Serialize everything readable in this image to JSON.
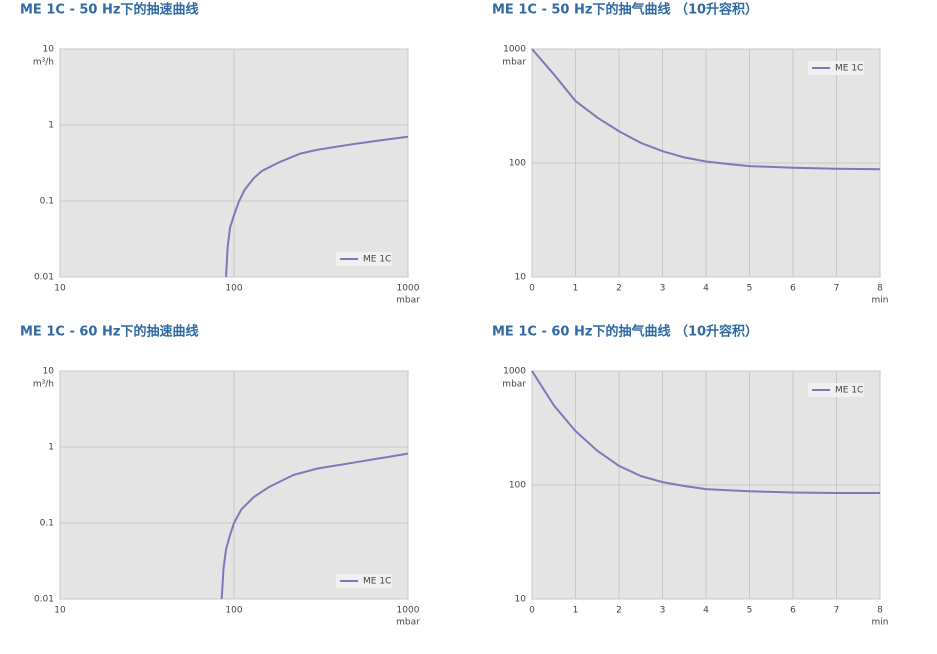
{
  "chart_data": [
    {
      "type": "line",
      "title": "ME 1C - 50 Hz下的抽速曲线",
      "xlabel": "mbar",
      "ylabel": "m³/h",
      "x": [
        90,
        92,
        95,
        100,
        107,
        115,
        130,
        145,
        180,
        240,
        300,
        460,
        700,
        1000
      ],
      "series": [
        {
          "name": "ME 1C",
          "color": "#7b79b8",
          "values": [
            0.01,
            0.025,
            0.045,
            0.065,
            0.1,
            0.14,
            0.2,
            0.25,
            0.32,
            0.42,
            0.47,
            0.55,
            0.63,
            0.7
          ]
        }
      ],
      "xlim": [
        10,
        1000
      ],
      "ylim": [
        0.01,
        10
      ],
      "xticks": [
        10,
        100,
        1000
      ],
      "yticks": [
        10,
        1,
        0.1,
        0.01
      ],
      "xscale": "log",
      "yscale": "log",
      "grid": true,
      "legend": "lower right"
    },
    {
      "type": "line",
      "title": "ME 1C - 50 Hz下的抽气曲线  （10升容积）",
      "xlabel": "min",
      "ylabel": "mbar",
      "x": [
        0,
        0.5,
        1,
        1.5,
        2,
        2.5,
        3,
        3.5,
        4,
        4.5,
        5,
        6,
        7,
        8
      ],
      "series": [
        {
          "name": "ME 1C",
          "color": "#7b79b8",
          "values": [
            1000,
            600,
            350,
            250,
            190,
            150,
            127,
            112,
            103,
            98,
            94,
            91,
            89,
            88
          ]
        }
      ],
      "xlim": [
        0,
        8
      ],
      "ylim": [
        10,
        1000
      ],
      "xticks": [
        0,
        1,
        2,
        3,
        4,
        5,
        6,
        7,
        8
      ],
      "yticks": [
        1000,
        100,
        10
      ],
      "xscale": "linear",
      "yscale": "log",
      "grid": true,
      "legend": "upper right"
    },
    {
      "type": "line",
      "title": "ME 1C - 60 Hz下的抽速曲线",
      "xlabel": "mbar",
      "ylabel": "m³/h",
      "x": [
        85,
        87,
        90,
        95,
        100,
        110,
        130,
        160,
        220,
        300,
        500,
        1000
      ],
      "series": [
        {
          "name": "ME 1C",
          "color": "#7b79b8",
          "values": [
            0.01,
            0.025,
            0.045,
            0.07,
            0.1,
            0.15,
            0.22,
            0.3,
            0.43,
            0.52,
            0.63,
            0.82
          ]
        }
      ],
      "xlim": [
        10,
        1000
      ],
      "ylim": [
        0.01,
        10
      ],
      "xticks": [
        10,
        100,
        1000
      ],
      "yticks": [
        10,
        1,
        0.1,
        0.01
      ],
      "xscale": "log",
      "yscale": "log",
      "grid": true,
      "legend": "lower right"
    },
    {
      "type": "line",
      "title": "ME 1C - 60 Hz下的抽气曲线  （10升容积）",
      "xlabel": "min",
      "ylabel": "mbar",
      "x": [
        0,
        0.5,
        1,
        1.5,
        2,
        2.5,
        3,
        3.5,
        4,
        4.5,
        5,
        6,
        7,
        8
      ],
      "series": [
        {
          "name": "ME 1C",
          "color": "#7b79b8",
          "values": [
            1000,
            500,
            297,
            200,
            147,
            120,
            106,
            98,
            92,
            90,
            88,
            86,
            85,
            85
          ]
        }
      ],
      "xlim": [
        0,
        8
      ],
      "ylim": [
        10,
        1000
      ],
      "xticks": [
        0,
        1,
        2,
        3,
        4,
        5,
        6,
        7,
        8
      ],
      "yticks": [
        1000,
        100,
        10
      ],
      "xscale": "linear",
      "yscale": "log",
      "grid": true,
      "legend": "upper right"
    }
  ]
}
